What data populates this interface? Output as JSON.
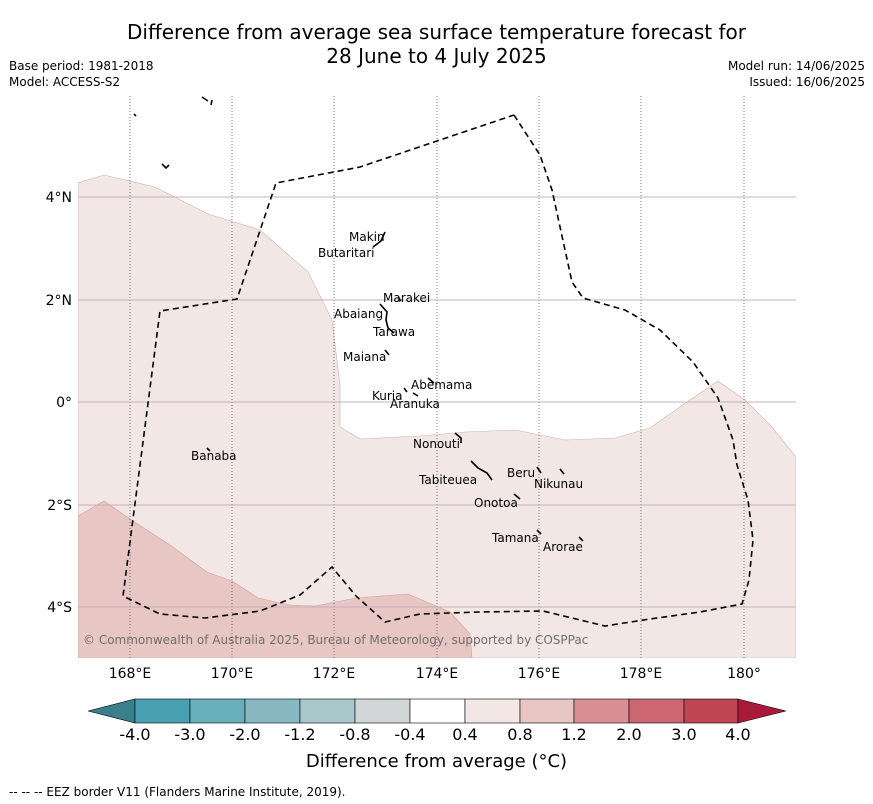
{
  "title": {
    "line1": "Difference from average sea surface temperature forecast for",
    "line2": "28 June to 4 July 2025"
  },
  "meta": {
    "base_period": "Base period: 1981-2018",
    "model": "Model: ACCESS-S2",
    "model_run": "Model run: 14/06/2025",
    "issued": "Issued: 16/06/2025"
  },
  "map": {
    "lon_labels": [
      "168°E",
      "170°E",
      "172°E",
      "174°E",
      "176°E",
      "178°E",
      "180°"
    ],
    "lat_labels": [
      "4°N",
      "2°N",
      "0°",
      "2°S",
      "4°S"
    ],
    "copyright": "© Commonwealth of Australia 2025, Bureau of Meteorology, supported by COSPPac",
    "islands": [
      {
        "name": "Makin"
      },
      {
        "name": "Butaritari"
      },
      {
        "name": "Marakei"
      },
      {
        "name": "Abaiang"
      },
      {
        "name": "Tarawa"
      },
      {
        "name": "Maiana"
      },
      {
        "name": "Abemama"
      },
      {
        "name": "Kuria"
      },
      {
        "name": "Aranuka"
      },
      {
        "name": "Nonouti"
      },
      {
        "name": "Banaba"
      },
      {
        "name": "Tabiteuea"
      },
      {
        "name": "Beru"
      },
      {
        "name": "Nikunau"
      },
      {
        "name": "Onotoa"
      },
      {
        "name": "Tamana"
      },
      {
        "name": "Arorae"
      }
    ],
    "colors": {
      "band_0_4_to_0_8": "#f3e7e6",
      "band_0_8_to_1_2": "#e8c6c3",
      "eez_border": "#000000"
    }
  },
  "colorbar": {
    "ticks": [
      "-4.0",
      "-3.0",
      "-2.0",
      "-1.2",
      "-0.8",
      "-0.4",
      "0.4",
      "0.8",
      "1.2",
      "2.0",
      "3.0",
      "4.0"
    ],
    "colors": [
      "#3a7f8c",
      "#47a1b0",
      "#68aebb",
      "#88b8c2",
      "#a8c8cc",
      "#d3d6d6",
      "#ffffff",
      "#f3e7e6",
      "#e8c6c3",
      "#d98f94",
      "#cc6772",
      "#c04553",
      "#a8193a"
    ],
    "title": "Difference from average (°C)"
  },
  "footer": "--  --  -- EEZ border V11 (Flanders Marine Institute, 2019)."
}
